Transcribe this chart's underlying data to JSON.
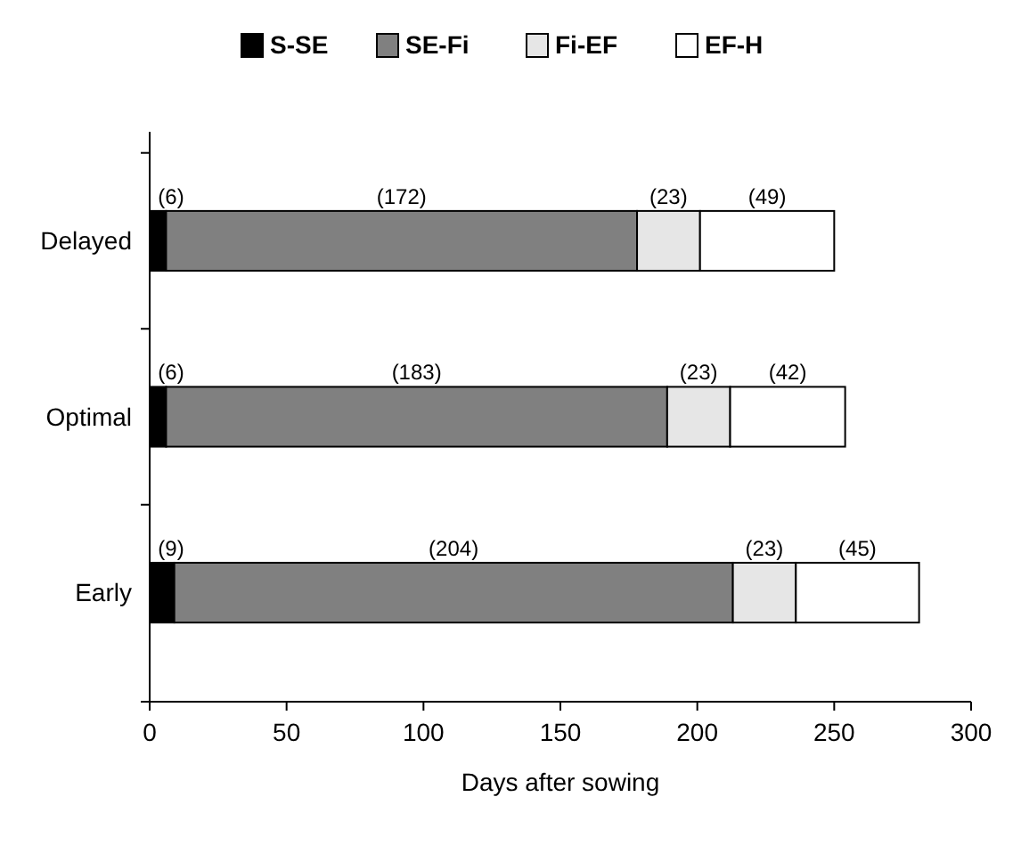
{
  "chart_data": {
    "type": "bar",
    "orientation": "horizontal",
    "stacked": true,
    "xlabel": "Days after sowing",
    "categories": [
      "Delayed",
      "Optimal",
      "Early"
    ],
    "series": [
      {
        "name": "S-SE",
        "color": "#000000",
        "values": [
          6,
          6,
          9
        ],
        "value_labels": [
          "(6)",
          "(6)",
          "(9)"
        ]
      },
      {
        "name": "SE-Fi",
        "color": "#808080",
        "values": [
          172,
          183,
          204
        ],
        "value_labels": [
          "(172)",
          "(183)",
          "(204)"
        ]
      },
      {
        "name": "Fi-EF",
        "color": "#e6e6e6",
        "values": [
          23,
          23,
          23
        ],
        "value_labels": [
          "(23)",
          "(23)",
          "(23)"
        ]
      },
      {
        "name": "EF-H",
        "color": "#ffffff",
        "values": [
          49,
          42,
          45
        ],
        "value_labels": [
          "(49)",
          "(42)",
          "(45)"
        ]
      }
    ],
    "xlim": [
      0,
      300
    ],
    "xticks": [
      0,
      50,
      100,
      150,
      200,
      250,
      300
    ],
    "grid": false,
    "legend": "top"
  }
}
